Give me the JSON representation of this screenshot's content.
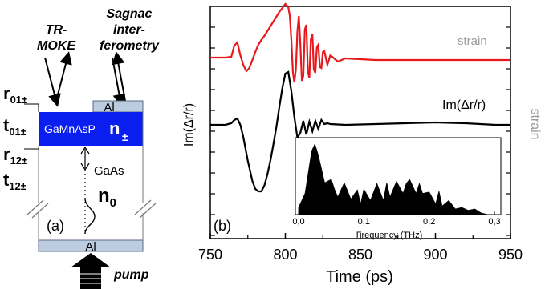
{
  "panel_a": {
    "label": "(a)",
    "probe_left": [
      "TR-",
      "MOKE"
    ],
    "probe_right": [
      "Sagnac",
      "inter-",
      "ferometry"
    ],
    "cap_top": "Al",
    "cap_bottom": "Al",
    "layer_film": "GaMnAsP",
    "layer_film_index": "n",
    "layer_film_index_sub": "±",
    "layer_substrate": "GaAs",
    "substrate_index": "n",
    "substrate_index_sub": "0",
    "coef_r01": "r",
    "coef_r01_sub": "01±",
    "coef_t01": "t",
    "coef_t01_sub": "01±",
    "coef_r12": "r",
    "coef_r12_sub": "12±",
    "coef_t12": "t",
    "coef_t12_sub": "12±",
    "pump_label": "pump",
    "colors": {
      "film": "#0a1ef0",
      "cap": "#bccce0",
      "arrow": "#000000"
    }
  },
  "panel_b": {
    "label": "(b)",
    "ylabel": "Im(Δr/r)",
    "ylabel_right": "strain",
    "series_label_strain": "strain",
    "series_label_im": "Im(Δr/r)",
    "colors": {
      "strain": "#e8191c",
      "im": "#000000",
      "right_label": "#9a9a9a"
    }
  },
  "chart_data": [
    {
      "type": "line",
      "title": "",
      "xlabel": "Time (ps)",
      "ylabel": "Im(Δr/r)",
      "xlim": [
        750,
        950
      ],
      "xticks": [
        "750",
        "800",
        "850",
        "900",
        "950"
      ],
      "y_tick_labels": false,
      "grid": false,
      "series": [
        {
          "name": "strain",
          "color": "#e8191c",
          "x": [
            750,
            760,
            764,
            766,
            768,
            770,
            772,
            774,
            776,
            778,
            780,
            782,
            784,
            786,
            788,
            790,
            792,
            794,
            796,
            798,
            800,
            802,
            803,
            804,
            805,
            806,
            807,
            808,
            809,
            810,
            811,
            812,
            813,
            814,
            815,
            816,
            817,
            818,
            819,
            820,
            821,
            822,
            823,
            824,
            825,
            826,
            828,
            830,
            835,
            840,
            860,
            880,
            900,
            920,
            940,
            950
          ],
          "y": [
            0.3,
            0.3,
            0.4,
            1.8,
            2.2,
            0.6,
            -0.6,
            -1.4,
            -1.0,
            0.0,
            1.0,
            1.9,
            2.5,
            3.0,
            3.6,
            4.2,
            4.8,
            5.4,
            6.0,
            6.5,
            7.0,
            6.6,
            5.5,
            2.5,
            -1.5,
            -2.8,
            -1.2,
            3.5,
            5.5,
            2.0,
            -2.6,
            -2.0,
            3.8,
            4.4,
            -1.5,
            -2.2,
            2.6,
            3.2,
            -1.2,
            -1.6,
            1.6,
            1.9,
            -0.9,
            -1.0,
            1.0,
            1.1,
            -0.6,
            0.6,
            -0.2,
            0.2,
            0.0,
            0.0,
            0.0,
            0.0,
            0.0,
            0.0
          ]
        },
        {
          "name": "Im(Δr/r)",
          "color": "#000000",
          "x": [
            750,
            760,
            764,
            766,
            768,
            770,
            772,
            775,
            778,
            780,
            782,
            784,
            786,
            788,
            790,
            792,
            794,
            796,
            798,
            800,
            802,
            804,
            806,
            808,
            810,
            812,
            814,
            816,
            818,
            820,
            822,
            824,
            826,
            828,
            830,
            840,
            860,
            880,
            900,
            920,
            940,
            950
          ],
          "y": [
            0.0,
            0.0,
            0.2,
            0.6,
            0.8,
            0.0,
            -1.5,
            -4.5,
            -7.0,
            -8.0,
            -8.3,
            -8.3,
            -7.6,
            -6.2,
            -4.5,
            -2.5,
            -0.3,
            2.2,
            4.6,
            6.4,
            6.6,
            4.2,
            1.0,
            -1.6,
            -1.0,
            0.5,
            -1.2,
            0.4,
            -0.8,
            0.5,
            -0.5,
            0.6,
            0.1,
            0.2,
            0.1,
            0.0,
            0.1,
            0.2,
            0.3,
            0.2,
            0.0,
            0.0
          ]
        }
      ]
    },
    {
      "type": "area",
      "title": "",
      "xlabel": "Frequency (THz)",
      "ylabel": "",
      "xlim": [
        0.0,
        0.3
      ],
      "xticks": [
        "0,0",
        "0,1",
        "0,2",
        "0,3"
      ],
      "y_tick_labels": false,
      "series": [
        {
          "name": "",
          "color": "#000000",
          "x": [
            0.0,
            0.01,
            0.02,
            0.025,
            0.03,
            0.04,
            0.05,
            0.055,
            0.06,
            0.07,
            0.08,
            0.09,
            0.095,
            0.1,
            0.11,
            0.12,
            0.13,
            0.135,
            0.14,
            0.15,
            0.16,
            0.165,
            0.17,
            0.18,
            0.185,
            0.19,
            0.2,
            0.21,
            0.215,
            0.22,
            0.23,
            0.24,
            0.25,
            0.26,
            0.27,
            0.28,
            0.29,
            0.3
          ],
          "y": [
            0.1,
            0.3,
            0.9,
            1.0,
            0.85,
            0.45,
            0.5,
            0.36,
            0.25,
            0.45,
            0.22,
            0.35,
            0.15,
            0.36,
            0.2,
            0.44,
            0.2,
            0.45,
            0.25,
            0.47,
            0.3,
            0.44,
            0.5,
            0.3,
            0.44,
            0.3,
            0.32,
            0.15,
            0.33,
            0.12,
            0.2,
            0.08,
            0.1,
            0.06,
            0.08,
            0.02,
            0.0,
            0.0
          ]
        }
      ]
    }
  ]
}
